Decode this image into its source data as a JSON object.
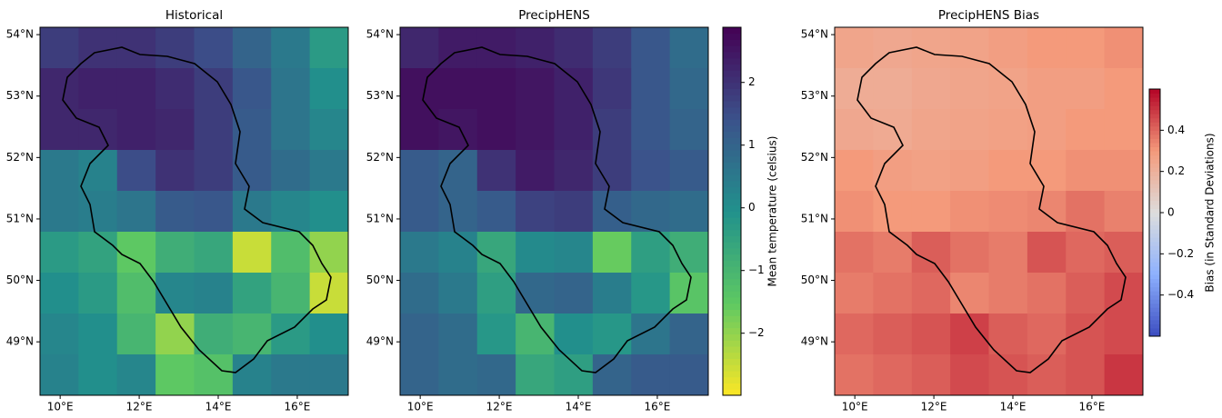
{
  "chart_data": [
    {
      "type": "heatmap",
      "title": "Historical",
      "colormap": "viridis_r",
      "xlim": [
        9.49,
        17.29
      ],
      "ylim": [
        48.13,
        54.12
      ],
      "zlim": [
        -2.99,
        2.88
      ],
      "xticks": [
        {
          "value": 10,
          "label": "10°E"
        },
        {
          "value": 12,
          "label": "12°E"
        },
        {
          "value": 14,
          "label": "14°E"
        },
        {
          "value": 16,
          "label": "16°E"
        }
      ],
      "yticks": [
        {
          "value": 49,
          "label": "49°N"
        },
        {
          "value": 50,
          "label": "50°N"
        },
        {
          "value": 51,
          "label": "51°N"
        },
        {
          "value": 52,
          "label": "52°N"
        },
        {
          "value": 53,
          "label": "53°N"
        },
        {
          "value": 54,
          "label": "54°N"
        }
      ],
      "z": [
        [
          1.8,
          2,
          2,
          1.8,
          1.5,
          1,
          0.5,
          -0.3
        ],
        [
          2.2,
          2.3,
          2.3,
          2.1,
          1.8,
          1.3,
          0.6,
          0
        ],
        [
          2.2,
          2.2,
          2.3,
          2.2,
          1.8,
          1.2,
          0.6,
          0.2
        ],
        [
          0.5,
          0.3,
          1.5,
          2,
          1.8,
          1.2,
          0.8,
          0.5
        ],
        [
          0.5,
          0.4,
          0.6,
          1.2,
          1.3,
          0.5,
          0.2,
          0
        ],
        [
          -0.3,
          -0.5,
          -1.5,
          -0.8,
          -0.6,
          -2.5,
          -1.2,
          -2
        ],
        [
          0,
          -0.3,
          -1.2,
          0.2,
          0.3,
          -0.5,
          -1,
          -2.5
        ],
        [
          0.2,
          0,
          -1,
          -2,
          -0.8,
          -1,
          -0.3,
          0
        ],
        [
          0.3,
          0,
          0.2,
          -1.5,
          -1.3,
          0.3,
          0.5,
          0.5
        ]
      ]
    },
    {
      "type": "heatmap",
      "title": "PrecipHENS",
      "colormap": "viridis_r",
      "xlim": [
        9.49,
        17.29
      ],
      "ylim": [
        48.13,
        54.12
      ],
      "zlim": [
        -2.99,
        2.88
      ],
      "xticks": [
        {
          "value": 10,
          "label": "10°E"
        },
        {
          "value": 12,
          "label": "12°E"
        },
        {
          "value": 14,
          "label": "14°E"
        },
        {
          "value": 16,
          "label": "16°E"
        }
      ],
      "yticks": [
        {
          "value": 49,
          "label": "49°N"
        },
        {
          "value": 50,
          "label": "50°N"
        },
        {
          "value": 51,
          "label": "51°N"
        },
        {
          "value": 52,
          "label": "52°N"
        },
        {
          "value": 53,
          "label": "53°N"
        },
        {
          "value": 54,
          "label": "54°N"
        }
      ],
      "z": [
        [
          2.2,
          2.4,
          2.4,
          2.3,
          2.1,
          1.8,
          1.3,
          0.8
        ],
        [
          2.6,
          2.6,
          2.6,
          2.5,
          2.3,
          1.9,
          1.3,
          0.9
        ],
        [
          2.6,
          2.5,
          2.6,
          2.5,
          2.3,
          1.8,
          1.3,
          1
        ],
        [
          1.2,
          1,
          2,
          2.4,
          2.2,
          1.8,
          1.4,
          1.2
        ],
        [
          1.2,
          1,
          1.2,
          1.7,
          1.8,
          1.1,
          0.9,
          0.8
        ],
        [
          0.5,
          0.3,
          -0.6,
          0.1,
          0.2,
          -1.6,
          -0.4,
          -0.8
        ],
        [
          0.8,
          0.5,
          -0.4,
          0.9,
          1,
          0.4,
          -0.2,
          -1.4
        ],
        [
          1,
          0.8,
          -0.2,
          -1,
          0,
          -0.2,
          0.6,
          1
        ],
        [
          1,
          0.8,
          0.9,
          -0.6,
          -0.4,
          1,
          1.2,
          1.2
        ]
      ],
      "colorbar": {
        "label": "Mean temperature (celsius)",
        "ticks": [
          {
            "value": -2,
            "label": "−2"
          },
          {
            "value": -1,
            "label": "−1"
          },
          0,
          1,
          2
        ]
      }
    },
    {
      "type": "heatmap",
      "title": "PrecipHENS Bias",
      "colormap": "coolwarm",
      "xlim": [
        9.49,
        17.29
      ],
      "ylim": [
        48.13,
        54.12
      ],
      "zlim": [
        -0.6,
        0.6
      ],
      "xticks": [
        {
          "value": 10,
          "label": "10°E"
        },
        {
          "value": 12,
          "label": "12°E"
        },
        {
          "value": 14,
          "label": "14°E"
        },
        {
          "value": 16,
          "label": "16°E"
        }
      ],
      "yticks": [
        {
          "value": 49,
          "label": "49°N"
        },
        {
          "value": 50,
          "label": "50°N"
        },
        {
          "value": 51,
          "label": "51°N"
        },
        {
          "value": 52,
          "label": "52°N"
        },
        {
          "value": 53,
          "label": "53°N"
        },
        {
          "value": 54,
          "label": "54°N"
        }
      ],
      "z": [
        [
          0.25,
          0.24,
          0.25,
          0.26,
          0.28,
          0.3,
          0.3,
          0.32
        ],
        [
          0.22,
          0.22,
          0.24,
          0.25,
          0.26,
          0.28,
          0.28,
          0.3
        ],
        [
          0.24,
          0.23,
          0.25,
          0.26,
          0.27,
          0.28,
          0.3,
          0.3
        ],
        [
          0.3,
          0.28,
          0.27,
          0.28,
          0.3,
          0.3,
          0.32,
          0.32
        ],
        [
          0.32,
          0.3,
          0.3,
          0.32,
          0.33,
          0.34,
          0.38,
          0.35
        ],
        [
          0.38,
          0.36,
          0.42,
          0.38,
          0.36,
          0.44,
          0.4,
          0.42
        ],
        [
          0.36,
          0.38,
          0.4,
          0.34,
          0.36,
          0.38,
          0.42,
          0.46
        ],
        [
          0.4,
          0.42,
          0.44,
          0.48,
          0.42,
          0.4,
          0.44,
          0.46
        ],
        [
          0.38,
          0.4,
          0.42,
          0.46,
          0.44,
          0.42,
          0.44,
          0.5
        ]
      ],
      "colorbar": {
        "label": "Bias (in Standard Deviations)",
        "ticks": [
          {
            "value": -0.4,
            "label": "−0.4"
          },
          {
            "value": -0.2,
            "label": "−0.2"
          },
          0.0,
          0.2,
          0.4
        ]
      }
    }
  ]
}
